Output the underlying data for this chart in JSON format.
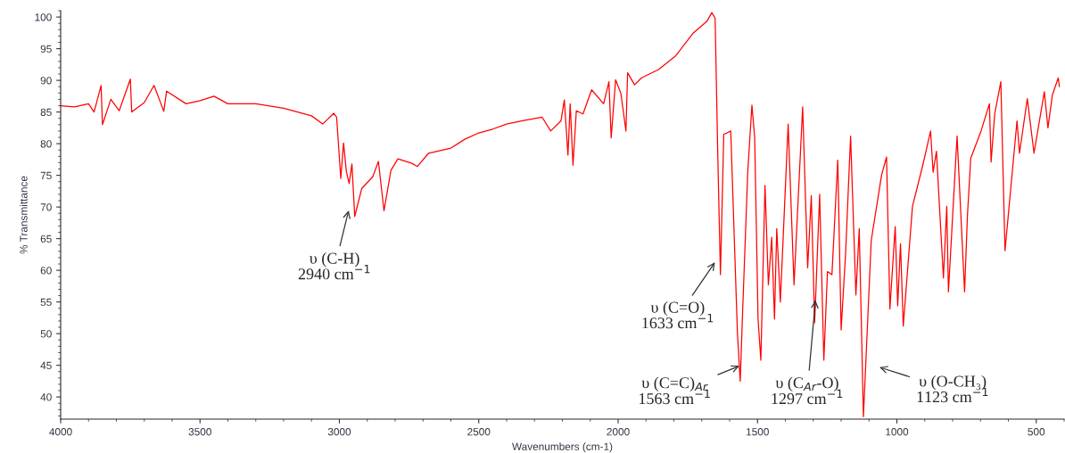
{
  "chart_data": {
    "type": "line",
    "xlabel": "Wavenumbers (cm-1)",
    "ylabel": "% Transmittance",
    "xlim": [
      4000,
      400
    ],
    "ylim": [
      36.5,
      101
    ],
    "xticks": [
      4000,
      3500,
      3000,
      2500,
      2000,
      1500,
      1000,
      500
    ],
    "yticks": [
      40,
      45,
      50,
      55,
      60,
      65,
      70,
      75,
      80,
      85,
      90,
      95,
      100
    ],
    "grid": false,
    "marker": "none",
    "line_style": "solid",
    "series": [
      {
        "color": "#ff0000",
        "x": [
          4000,
          3950,
          3900,
          3880,
          3855,
          3850,
          3820,
          3790,
          3750,
          3745,
          3700,
          3665,
          3630,
          3620,
          3550,
          3500,
          3450,
          3400,
          3300,
          3200,
          3100,
          3060,
          3020,
          3010,
          2995,
          2985,
          2975,
          2965,
          2955,
          2945,
          2920,
          2880,
          2860,
          2840,
          2815,
          2790,
          2740,
          2720,
          2680,
          2600,
          2550,
          2500,
          2450,
          2400,
          2347,
          2273,
          2242,
          2205,
          2193,
          2180,
          2172,
          2162,
          2150,
          2126,
          2095,
          2052,
          2033,
          2025,
          2009,
          1990,
          1972,
          1966,
          1941,
          1916,
          1855,
          1793,
          1732,
          1682,
          1664,
          1652,
          1643,
          1633,
          1621,
          1609,
          1596,
          1572,
          1562,
          1553,
          1535,
          1520,
          1510,
          1498,
          1488,
          1473,
          1461,
          1449,
          1439,
          1431,
          1418,
          1390,
          1369,
          1338,
          1320,
          1307,
          1295,
          1277,
          1262,
          1249,
          1233,
          1212,
          1200,
          1184,
          1166,
          1147,
          1135,
          1120,
          1092,
          1055,
          1037,
          1025,
          1006,
          997,
          987,
          977,
          944,
          907,
          879,
          870,
          858,
          833,
          821,
          815,
          784,
          757,
          747,
          735,
          698,
          668,
          662,
          649,
          627,
          612,
          603,
          569,
          560,
          532,
          508,
          471,
          458,
          442,
          421,
          417
        ],
        "values": [
          86,
          85.8,
          86.3,
          85,
          89.2,
          83.0,
          87,
          85.2,
          90.2,
          85,
          86.5,
          89.2,
          85.1,
          88.3,
          86.3,
          86.8,
          87.5,
          86.3,
          86.3,
          85.6,
          84.4,
          83.1,
          84.8,
          84.2,
          74.5,
          80.1,
          75.6,
          73.7,
          76.8,
          68.5,
          72.9,
          74.8,
          77.2,
          69.4,
          75.8,
          77.6,
          76.9,
          76.4,
          78.5,
          79.3,
          80.7,
          81.7,
          82.3,
          83.1,
          83.6,
          84.2,
          82.0,
          83.6,
          86.9,
          78.2,
          86.3,
          76.6,
          85.2,
          84.7,
          88.5,
          86.3,
          89.8,
          80.9,
          90.1,
          87.9,
          82.0,
          91.2,
          89.3,
          90.4,
          91.7,
          93.9,
          97.4,
          99.3,
          100.7,
          99.8,
          79.3,
          59.3,
          81.5,
          81.7,
          82.0,
          50.1,
          42.5,
          53.9,
          75.5,
          86.1,
          80.9,
          52.3,
          45.8,
          73.4,
          57.7,
          65.2,
          52.3,
          66.6,
          55.0,
          83.1,
          57.7,
          85.8,
          60.4,
          71.8,
          51.7,
          72.0,
          45.8,
          59.8,
          59.3,
          77.4,
          50.6,
          62.6,
          81.2,
          56.1,
          66.6,
          36.9,
          64.7,
          75.0,
          77.9,
          53.9,
          66.9,
          54.4,
          64.2,
          51.2,
          70.1,
          76.6,
          82.0,
          75.5,
          78.8,
          58.8,
          70.1,
          56.6,
          81.2,
          56.6,
          68.5,
          77.7,
          82.0,
          86.3,
          77.1,
          84.7,
          89.8,
          63.1,
          67.4,
          83.6,
          78.5,
          87.1,
          78.5,
          88.2,
          82.5,
          87.7,
          90.4,
          89.0
        ]
      }
    ],
    "annotations": [
      "υ (C-H)\n2940 cm$^{−1}$",
      "υ (C=O)\n1633 cm$^{−1}$",
      {
        "text": "υ (C=C)$_{Ar}$\n1563 cm$^{−1}$",
        "x": 1565,
        "y": 44.9
      },
      {
        "text": "υ (C$_{Ar}$-O)\n1297 cm$^{−1}$",
        "x": 1292,
        "y": 55.3
      },
      "υ (O-CH₃)\n1123 cm$^{−1}$"
    ]
  }
}
